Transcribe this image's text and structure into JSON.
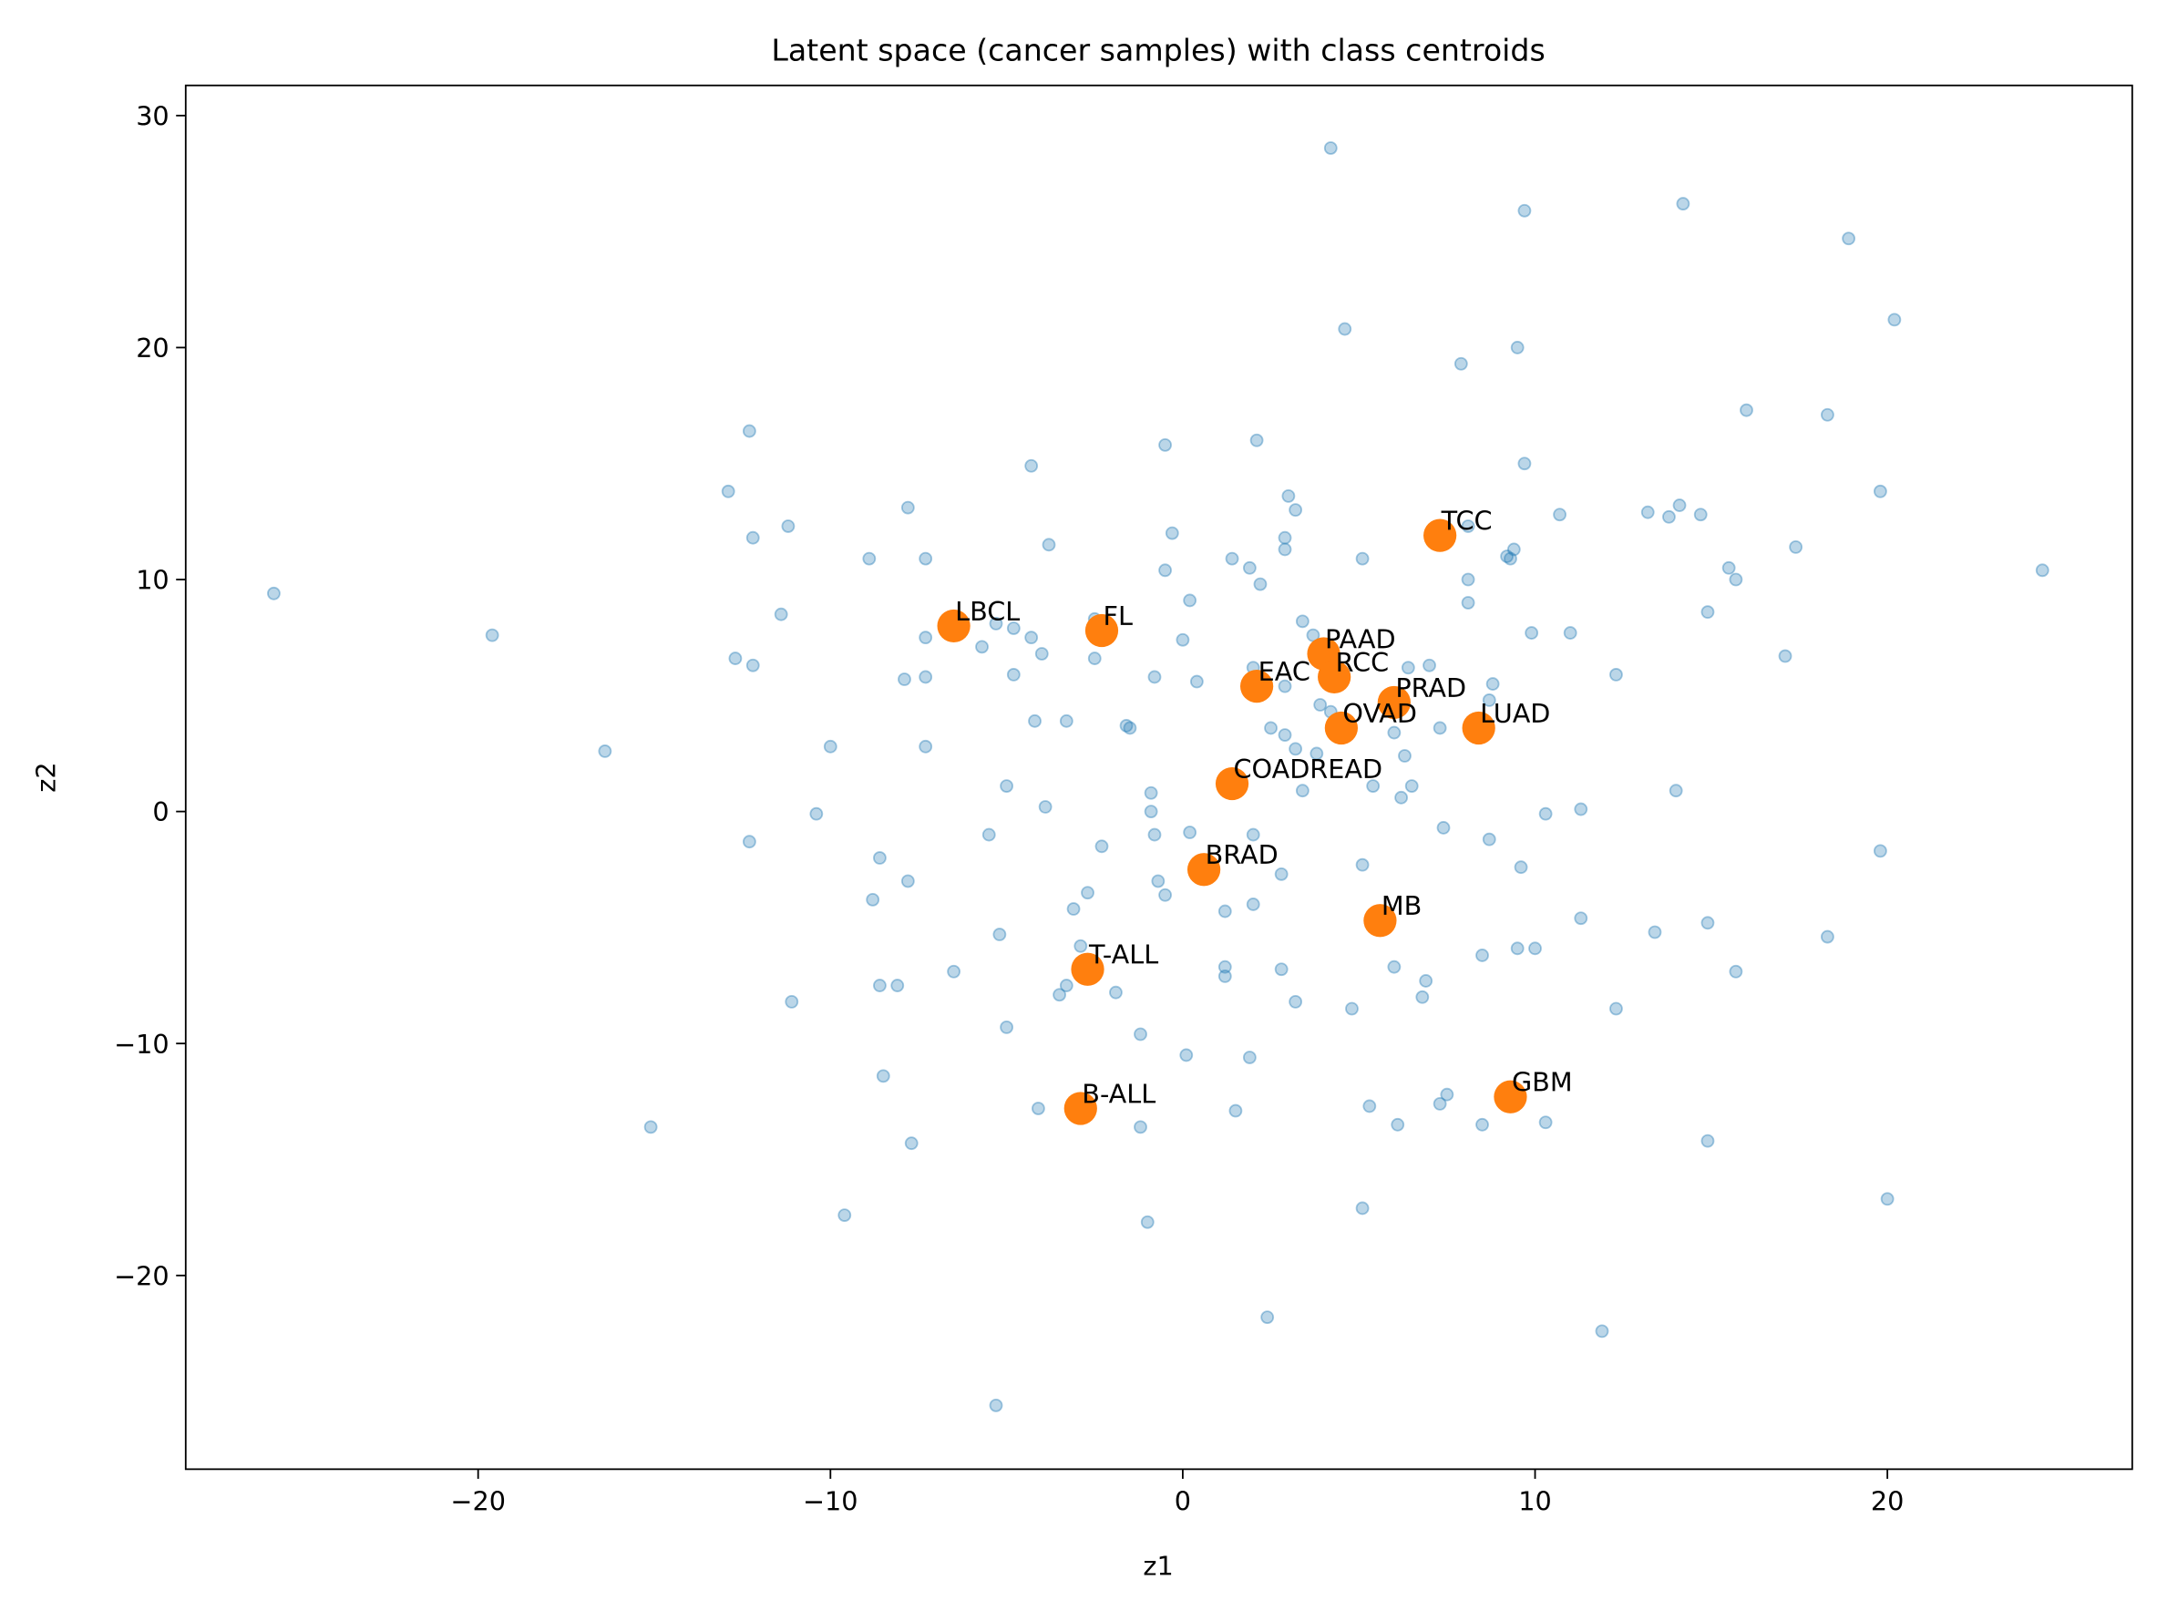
{
  "chart_data": {
    "type": "scatter",
    "title": "Latent space (cancer samples) with class centroids",
    "xlabel": "z1",
    "ylabel": "z2",
    "xlim": [
      -28.3,
      26.95
    ],
    "ylim": [
      -28.35,
      31.3
    ],
    "xticks": [
      -20,
      -10,
      0,
      10,
      20
    ],
    "yticks": [
      -20,
      -10,
      0,
      10,
      20,
      30
    ],
    "xtick_labels": [
      "−20",
      "−10",
      "0",
      "10",
      "20"
    ],
    "ytick_labels": [
      "−20",
      "−10",
      "0",
      "10",
      "20",
      "30"
    ],
    "grid": false,
    "colors": {
      "samples": "#1f77b4",
      "centroids": "#ff7f0e"
    },
    "series": [
      {
        "name": "samples",
        "points": [
          [
            -25.8,
            9.4
          ],
          [
            -19.6,
            7.6
          ],
          [
            -16.4,
            2.6
          ],
          [
            -15.1,
            -13.6
          ],
          [
            -12.3,
            16.4
          ],
          [
            -12.9,
            13.8
          ],
          [
            -12.2,
            11.8
          ],
          [
            -11.2,
            12.3
          ],
          [
            -11.4,
            8.5
          ],
          [
            -12.7,
            6.6
          ],
          [
            -12.2,
            6.3
          ],
          [
            -12.3,
            -1.3
          ],
          [
            -11.1,
            -8.2
          ],
          [
            -10.4,
            -0.1
          ],
          [
            -10.0,
            2.8
          ],
          [
            -9.6,
            -17.4
          ],
          [
            -8.9,
            10.9
          ],
          [
            -7.8,
            13.1
          ],
          [
            -7.3,
            10.9
          ],
          [
            -7.3,
            7.5
          ],
          [
            -7.9,
            5.7
          ],
          [
            -7.3,
            5.8
          ],
          [
            -7.3,
            2.8
          ],
          [
            -8.6,
            -2.0
          ],
          [
            -7.8,
            -3.0
          ],
          [
            -8.8,
            -3.8
          ],
          [
            -8.6,
            -7.5
          ],
          [
            -8.1,
            -7.5
          ],
          [
            -8.5,
            -11.4
          ],
          [
            -7.7,
            -14.3
          ],
          [
            -6.5,
            -6.9
          ],
          [
            -5.7,
            7.1
          ],
          [
            -5.3,
            8.1
          ],
          [
            -4.8,
            7.9
          ],
          [
            -4.3,
            7.5
          ],
          [
            -4.0,
            6.8
          ],
          [
            -4.8,
            5.9
          ],
          [
            -4.3,
            14.9
          ],
          [
            -3.8,
            11.5
          ],
          [
            -4.2,
            3.9
          ],
          [
            -3.3,
            3.9
          ],
          [
            -5.0,
            1.1
          ],
          [
            -3.9,
            0.2
          ],
          [
            -5.5,
            -1.0
          ],
          [
            -5.2,
            -5.3
          ],
          [
            -3.1,
            -4.2
          ],
          [
            -2.7,
            -3.5
          ],
          [
            -5.0,
            -9.3
          ],
          [
            -3.5,
            -7.9
          ],
          [
            -3.3,
            -7.5
          ],
          [
            -2.9,
            -5.8
          ],
          [
            -4.1,
            -12.8
          ],
          [
            -5.3,
            -25.6
          ],
          [
            -2.5,
            6.6
          ],
          [
            -2.5,
            8.3
          ],
          [
            -1.6,
            3.7
          ],
          [
            -1.5,
            3.6
          ],
          [
            -2.3,
            -1.5
          ],
          [
            -1.9,
            -7.8
          ],
          [
            -1.2,
            -9.6
          ],
          [
            -1.2,
            -13.6
          ],
          [
            -1.0,
            -17.7
          ],
          [
            -0.5,
            15.8
          ],
          [
            -0.3,
            12.0
          ],
          [
            -0.5,
            10.4
          ],
          [
            0.2,
            9.1
          ],
          [
            0.0,
            7.4
          ],
          [
            -0.8,
            5.8
          ],
          [
            0.4,
            5.6
          ],
          [
            -0.9,
            0.8
          ],
          [
            -0.9,
            0.0
          ],
          [
            -0.8,
            -1.0
          ],
          [
            0.2,
            -0.9
          ],
          [
            -0.7,
            -3.0
          ],
          [
            -0.5,
            -3.6
          ],
          [
            0.1,
            -10.5
          ],
          [
            1.4,
            10.9
          ],
          [
            1.9,
            10.5
          ],
          [
            2.1,
            16.0
          ],
          [
            2.2,
            9.8
          ],
          [
            2.0,
            6.2
          ],
          [
            2.5,
            3.6
          ],
          [
            1.2,
            -4.3
          ],
          [
            1.2,
            -6.7
          ],
          [
            1.2,
            -7.1
          ],
          [
            2.0,
            -1.0
          ],
          [
            2.0,
            -4.0
          ],
          [
            1.5,
            -12.9
          ],
          [
            1.9,
            -10.6
          ],
          [
            2.4,
            -21.8
          ],
          [
            3.0,
            13.6
          ],
          [
            3.2,
            13.0
          ],
          [
            2.9,
            11.8
          ],
          [
            2.9,
            11.3
          ],
          [
            3.4,
            8.2
          ],
          [
            2.9,
            5.4
          ],
          [
            2.9,
            3.3
          ],
          [
            3.2,
            2.7
          ],
          [
            3.4,
            0.9
          ],
          [
            2.8,
            -2.7
          ],
          [
            2.8,
            -6.8
          ],
          [
            3.2,
            -8.2
          ],
          [
            4.2,
            28.6
          ],
          [
            4.6,
            20.8
          ],
          [
            5.1,
            10.9
          ],
          [
            3.7,
            7.6
          ],
          [
            3.9,
            4.6
          ],
          [
            4.2,
            4.3
          ],
          [
            3.8,
            2.5
          ],
          [
            5.1,
            -2.3
          ],
          [
            4.8,
            -8.5
          ],
          [
            5.3,
            -12.7
          ],
          [
            5.1,
            -17.1
          ],
          [
            5.4,
            1.1
          ],
          [
            6.0,
            3.4
          ],
          [
            6.3,
            2.4
          ],
          [
            6.2,
            0.6
          ],
          [
            6.4,
            6.2
          ],
          [
            7.0,
            6.3
          ],
          [
            6.5,
            1.1
          ],
          [
            6.0,
            -6.7
          ],
          [
            6.9,
            -7.3
          ],
          [
            6.8,
            -8.0
          ],
          [
            6.1,
            -13.5
          ],
          [
            7.3,
            3.6
          ],
          [
            7.4,
            -0.7
          ],
          [
            7.3,
            -12.6
          ],
          [
            7.5,
            -12.2
          ],
          [
            7.9,
            19.3
          ],
          [
            8.1,
            12.3
          ],
          [
            8.1,
            10.0
          ],
          [
            8.1,
            9.0
          ],
          [
            8.5,
            -6.2
          ],
          [
            8.7,
            -1.2
          ],
          [
            8.8,
            5.5
          ],
          [
            8.7,
            4.8
          ],
          [
            8.5,
            -13.5
          ],
          [
            9.2,
            11.0
          ],
          [
            9.3,
            10.9
          ],
          [
            9.4,
            11.3
          ],
          [
            9.5,
            20.0
          ],
          [
            9.7,
            25.9
          ],
          [
            9.7,
            15.0
          ],
          [
            9.9,
            7.7
          ],
          [
            9.6,
            -2.4
          ],
          [
            9.5,
            -5.9
          ],
          [
            10.0,
            -5.9
          ],
          [
            10.3,
            -0.1
          ],
          [
            10.3,
            -13.4
          ],
          [
            10.7,
            12.8
          ],
          [
            11.0,
            7.7
          ],
          [
            11.3,
            0.1
          ],
          [
            11.3,
            -4.6
          ],
          [
            12.3,
            5.9
          ],
          [
            12.3,
            -8.5
          ],
          [
            11.9,
            -22.4
          ],
          [
            13.2,
            12.9
          ],
          [
            13.8,
            12.7
          ],
          [
            14.1,
            13.2
          ],
          [
            14.7,
            12.8
          ],
          [
            13.4,
            -5.2
          ],
          [
            14.0,
            0.9
          ],
          [
            14.2,
            26.2
          ],
          [
            14.9,
            8.6
          ],
          [
            14.9,
            -4.8
          ],
          [
            14.9,
            -14.2
          ],
          [
            15.5,
            10.5
          ],
          [
            15.7,
            10.0
          ],
          [
            15.7,
            -6.9
          ],
          [
            16.0,
            17.3
          ],
          [
            17.4,
            11.4
          ],
          [
            17.1,
            6.7
          ],
          [
            18.3,
            17.1
          ],
          [
            18.3,
            -5.4
          ],
          [
            18.9,
            24.7
          ],
          [
            19.8,
            13.8
          ],
          [
            19.8,
            -1.7
          ],
          [
            20.2,
            21.2
          ],
          [
            20.0,
            -16.7
          ],
          [
            24.4,
            10.4
          ]
        ]
      },
      {
        "name": "centroids",
        "points": [
          {
            "label": "LBCL",
            "x": -6.5,
            "y": 8.0
          },
          {
            "label": "FL",
            "x": -2.3,
            "y": 7.8
          },
          {
            "label": "TCC",
            "x": 7.3,
            "y": 11.9
          },
          {
            "label": "PAAD",
            "x": 4.0,
            "y": 6.8
          },
          {
            "label": "RCC",
            "x": 4.3,
            "y": 5.8
          },
          {
            "label": "EAC",
            "x": 2.1,
            "y": 5.4
          },
          {
            "label": "PRAD",
            "x": 6.0,
            "y": 4.7
          },
          {
            "label": "OVAD",
            "x": 4.5,
            "y": 3.6
          },
          {
            "label": "LUAD",
            "x": 8.4,
            "y": 3.6
          },
          {
            "label": "COADREAD",
            "x": 1.4,
            "y": 1.2
          },
          {
            "label": "BRAD",
            "x": 0.6,
            "y": -2.5
          },
          {
            "label": "MB",
            "x": 5.6,
            "y": -4.7
          },
          {
            "label": "T-ALL",
            "x": -2.7,
            "y": -6.8
          },
          {
            "label": "B-ALL",
            "x": -2.9,
            "y": -12.8
          },
          {
            "label": "GBM",
            "x": 9.3,
            "y": -12.3
          }
        ]
      }
    ]
  }
}
